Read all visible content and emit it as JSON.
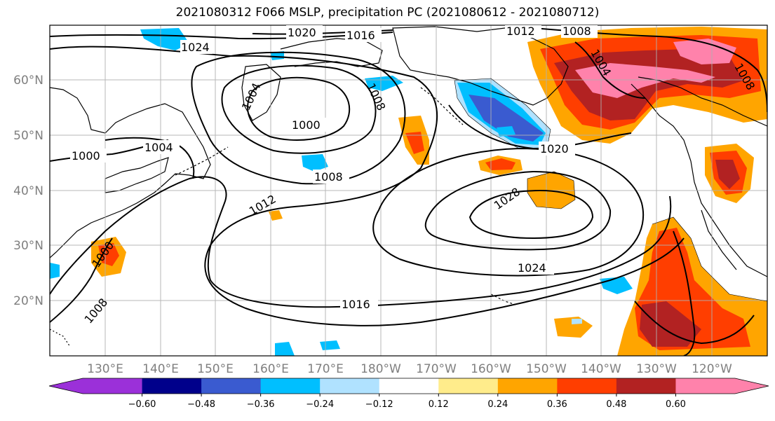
{
  "title": "2021080312 F066 MSLP, precipitation PC (2021080612 - 2021080712)",
  "map": {
    "lon_ticks": [
      "130°E",
      "140°E",
      "150°E",
      "160°E",
      "170°E",
      "180°W",
      "170°W",
      "160°W",
      "150°W",
      "140°W",
      "130°W",
      "120°W"
    ],
    "lat_ticks": [
      "60°N",
      "50°N",
      "40°N",
      "30°N",
      "20°N"
    ],
    "isobar_labels": [
      "1024",
      "1020",
      "1016",
      "1012",
      "1008",
      "1004",
      "1000",
      "1004",
      "1008",
      "1000",
      "1004",
      "1008",
      "1000",
      "1008",
      "1012",
      "1016",
      "1020",
      "1024",
      "1028",
      "1008"
    ]
  },
  "colorbar": {
    "colors": [
      "#9b30d9",
      "#00008b",
      "#3a5bd0",
      "#00bfff",
      "#b0e2ff",
      "#ffffff",
      "#ffec8b",
      "#ffa500",
      "#ff3e00",
      "#b22222",
      "#ff82ab"
    ],
    "tick_labels": [
      "−0.60",
      "−0.48",
      "−0.36",
      "−0.24",
      "−0.12",
      "0.12",
      "0.24",
      "0.36",
      "0.48",
      "0.60"
    ]
  }
}
